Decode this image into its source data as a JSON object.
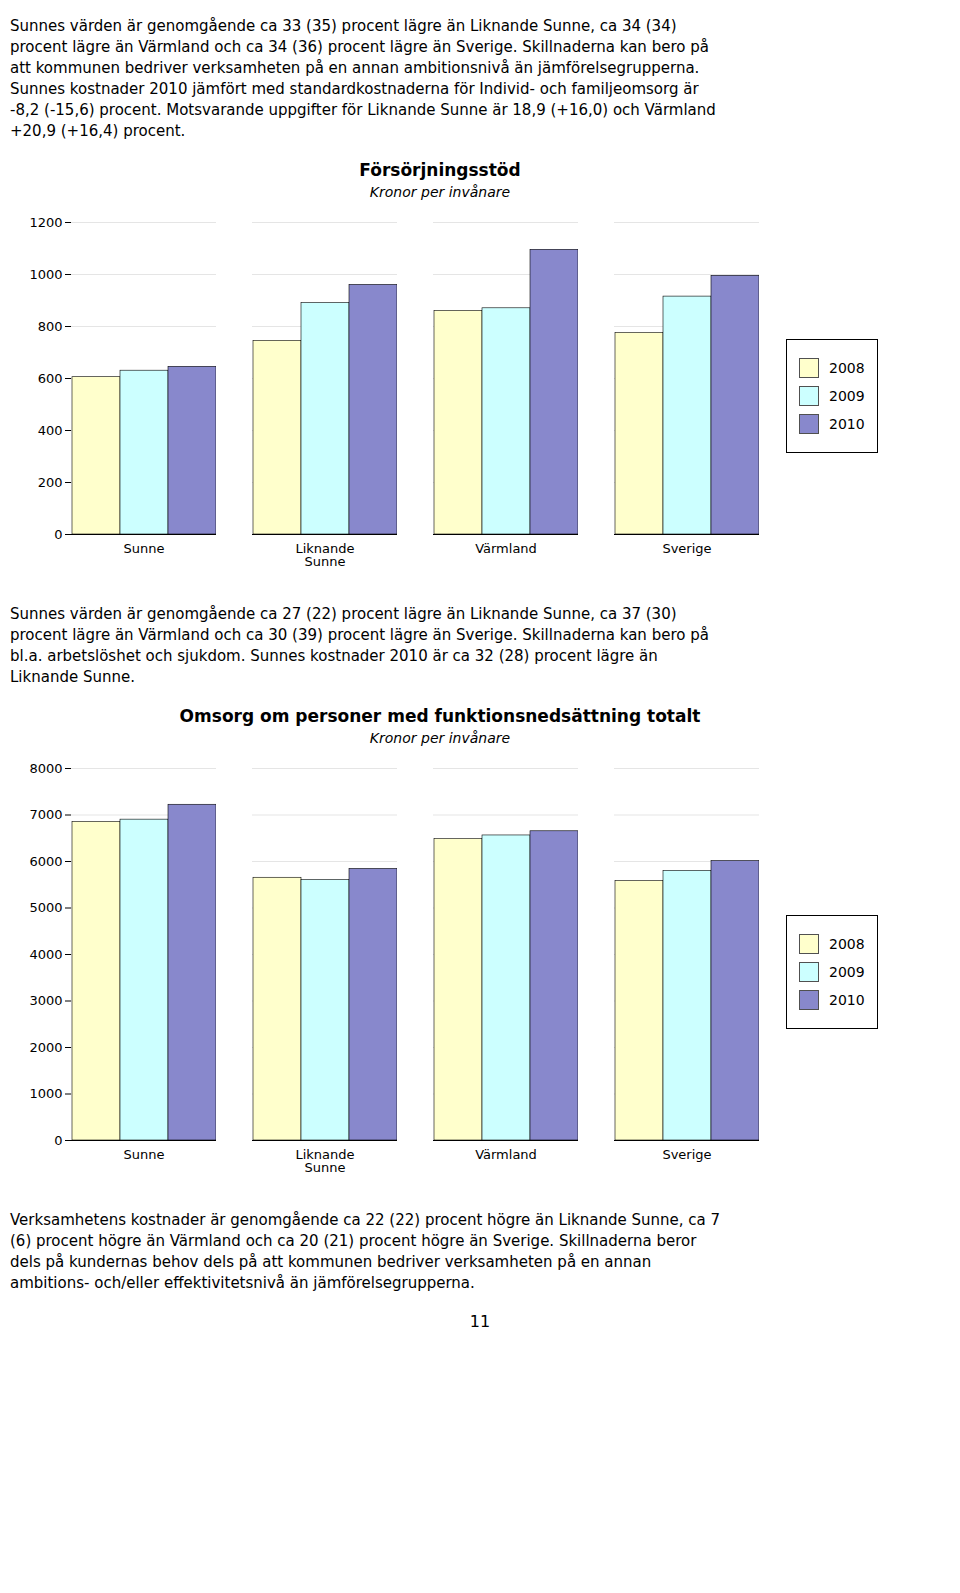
{
  "chart_data": [
    {
      "type": "bar",
      "title": "Försörjningsstöd",
      "subtitle": "Kronor per invånare",
      "categories": [
        "Sunne",
        "Liknande\nSunne",
        "Värmland",
        "Sverige"
      ],
      "series": [
        {
          "name": "2008",
          "color": "#FFFFCC",
          "values": [
            605,
            745,
            860,
            775
          ]
        },
        {
          "name": "2009",
          "color": "#CCFFFF",
          "values": [
            630,
            890,
            870,
            915
          ]
        },
        {
          "name": "2010",
          "color": "#8888CC",
          "values": [
            645,
            960,
            1095,
            995
          ]
        }
      ],
      "ylim": [
        0,
        1200
      ],
      "yticks": [
        0,
        200,
        400,
        600,
        800,
        1000,
        1200
      ],
      "grid": true,
      "legend": "right"
    },
    {
      "type": "bar",
      "title": "Omsorg om personer med funktionsnedsättning totalt",
      "subtitle": "Kronor per invånare",
      "categories": [
        "Sunne",
        "Liknande\nSunne",
        "Värmland",
        "Sverige"
      ],
      "series": [
        {
          "name": "2008",
          "color": "#FFFFCC",
          "values": [
            6850,
            5650,
            6480,
            5580
          ]
        },
        {
          "name": "2009",
          "color": "#CCFFFF",
          "values": [
            6900,
            5600,
            6560,
            5800
          ]
        },
        {
          "name": "2010",
          "color": "#8888CC",
          "values": [
            7220,
            5840,
            6650,
            6010
          ]
        }
      ],
      "ylim": [
        0,
        8000
      ],
      "yticks": [
        0,
        1000,
        2000,
        3000,
        4000,
        5000,
        6000,
        7000,
        8000
      ],
      "grid": true,
      "legend": "right"
    }
  ],
  "paragraphs": [
    [
      "Sunnes värden är genomgående ca 33 (35) procent lägre än Liknande Sunne, ca 34 (34)",
      "procent lägre än Värmland och ca 34 (36) procent lägre än Sverige. Skillnaderna kan bero på",
      "att kommunen bedriver verksamheten på en annan ambitionsnivå än jämförelsegrupperna.",
      "Sunnes kostnader 2010 jämfört med standardkostnaderna för Individ- och familjeomsorg är",
      "-8,2 (-15,6) procent. Motsvarande uppgifter för Liknande Sunne är 18,9 (+16,0) och Värmland",
      "+20,9 (+16,4) procent."
    ],
    [
      "Sunnes värden är genomgående ca 27 (22) procent lägre än Liknande Sunne, ca 37 (30)",
      "procent lägre än Värmland och ca 30 (39) procent lägre än Sverige. Skillnaderna kan bero på",
      "bl.a. arbetslöshet och sjukdom. Sunnes kostnader 2010 är ca 32 (28) procent lägre än",
      "Liknande Sunne."
    ],
    [
      "Verksamhetens kostnader är genomgående ca 22 (22) procent högre än Liknande Sunne, ca 7",
      "(6) procent högre än Värmland och ca 20 (21) procent högre än Sverige. Skillnaderna beror",
      "dels på kundernas behov dels på att kommunen bedriver verksamheten på en annan",
      "ambitions- och/eller effektivitetsnivå än jämförelsegrupperna."
    ]
  ],
  "page_number": "11"
}
